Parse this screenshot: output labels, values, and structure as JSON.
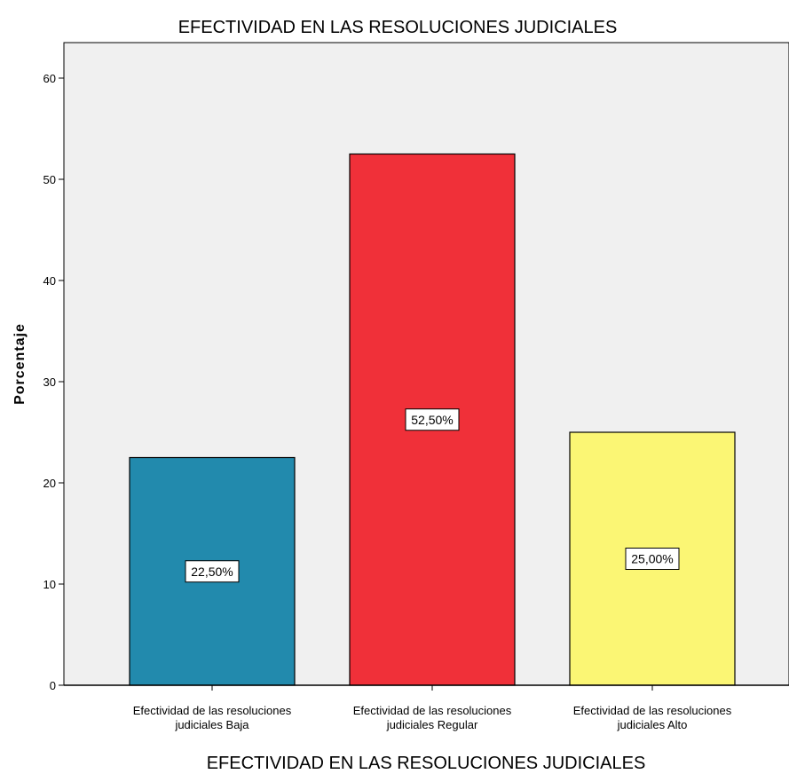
{
  "chart_data": {
    "type": "bar",
    "title": "EFECTIVIDAD EN LAS RESOLUCIONES JUDICIALES",
    "xlabel": "EFECTIVIDAD EN LAS RESOLUCIONES JUDICIALES",
    "ylabel": "Porcentaje",
    "categories": [
      [
        "Efectividad de las resoluciones",
        "judiciales Baja"
      ],
      [
        "Efectividad de las resoluciones",
        "judiciales Regular"
      ],
      [
        "Efectividad de las resoluciones",
        "judiciales Alto"
      ]
    ],
    "values": [
      22.5,
      52.5,
      25.0
    ],
    "data_labels": [
      "22,50%",
      "52,50%",
      "25,00%"
    ],
    "colors": [
      "#228aad",
      "#f03039",
      "#fbf674"
    ],
    "ylim": [
      0,
      60
    ],
    "yticks": [
      0,
      10,
      20,
      30,
      40,
      50,
      60
    ],
    "plot_background": "#f0f0f0",
    "grid": false,
    "legend": "none"
  }
}
